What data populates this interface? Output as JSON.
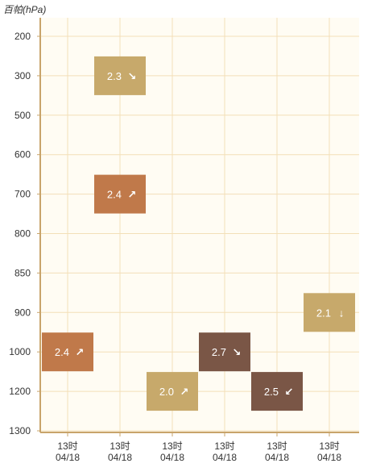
{
  "chart_data": {
    "type": "heatmap",
    "title": "",
    "ylabel": "百帕(hPa)",
    "xlabel": "",
    "y_levels": [
      "200",
      "300",
      "500",
      "600",
      "700",
      "800",
      "850",
      "900",
      "1000",
      "1200",
      "1300"
    ],
    "x_categories": [
      {
        "time": "13时",
        "date": "04/18"
      },
      {
        "time": "13时",
        "date": "04/18"
      },
      {
        "time": "13时",
        "date": "04/18"
      },
      {
        "time": "13时",
        "date": "04/18"
      },
      {
        "time": "13时",
        "date": "04/18"
      },
      {
        "time": "13时",
        "date": "04/18"
      }
    ],
    "cells": [
      {
        "col": 1,
        "level": "300",
        "value": "2.3",
        "arrow": "↘",
        "color": "#c7a96b"
      },
      {
        "col": 1,
        "level": "700",
        "value": "2.4",
        "arrow": "↗",
        "color": "#c0794a"
      },
      {
        "col": 0,
        "level": "1000",
        "value": "2.4",
        "arrow": "↗",
        "color": "#c0794a"
      },
      {
        "col": 2,
        "level": "1200",
        "value": "2.0",
        "arrow": "↗",
        "color": "#c7a96b"
      },
      {
        "col": 3,
        "level": "1000",
        "value": "2.7",
        "arrow": "↘",
        "color": "#7a5646"
      },
      {
        "col": 4,
        "level": "1200",
        "value": "2.5",
        "arrow": "↙",
        "color": "#7a5646"
      },
      {
        "col": 5,
        "level": "900",
        "value": "2.1",
        "arrow": "↓",
        "color": "#c7a96b"
      }
    ],
    "grid": true,
    "colors": {
      "plot_bg": "#fffcf3",
      "grid": "#f3dfb8",
      "axis": "#c8a46b",
      "label_text": "#333333",
      "cell_text": "#ffffff"
    }
  }
}
